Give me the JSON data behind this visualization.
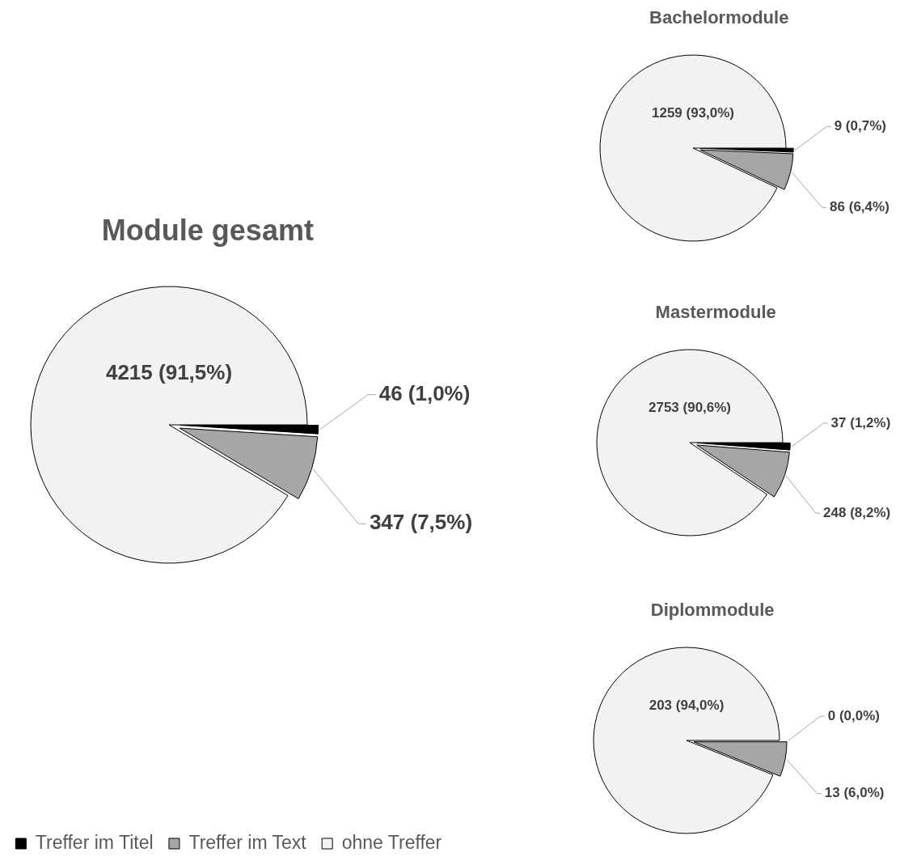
{
  "chart_data": [
    {
      "type": "pie",
      "title": "Module gesamt",
      "categories": [
        "Treffer im Titel",
        "Treffer im Text",
        "ohne Treffer"
      ],
      "values": [
        46,
        347,
        4215
      ],
      "colors": [
        "#000000",
        "#a6a6a6",
        "#f2f2f2"
      ],
      "value_labels": [
        "46 (1,0%)",
        "347 (7,5%)",
        "4215 (91,5%)"
      ],
      "legend": "bottom"
    },
    {
      "type": "pie",
      "title": "Bachelormodule",
      "categories": [
        null,
        null,
        null
      ],
      "values": [
        9,
        86,
        1259
      ],
      "colors": [
        "#000000",
        "#a6a6a6",
        "#f2f2f2"
      ],
      "value_labels": [
        "9 (0,7%)",
        "86 (6,4%)",
        "1259 (93,0%)"
      ]
    },
    {
      "type": "pie",
      "title": "Mastermodule",
      "categories": [
        null,
        null,
        null
      ],
      "values": [
        37,
        248,
        2753
      ],
      "colors": [
        "#000000",
        "#a6a6a6",
        "#f2f2f2"
      ],
      "value_labels": [
        "37 (1,2%)",
        "248 (8,2%)",
        "2753 (90,6%)"
      ]
    },
    {
      "type": "pie",
      "title": "Diplommodule",
      "categories": [
        null,
        null,
        null
      ],
      "values": [
        0,
        13,
        203
      ],
      "colors": [
        "#000000",
        "#a6a6a6",
        "#f2f2f2"
      ],
      "value_labels": [
        "0 (0,0%)",
        "13 (6,0%)",
        "203 (94,0%)"
      ]
    }
  ]
}
